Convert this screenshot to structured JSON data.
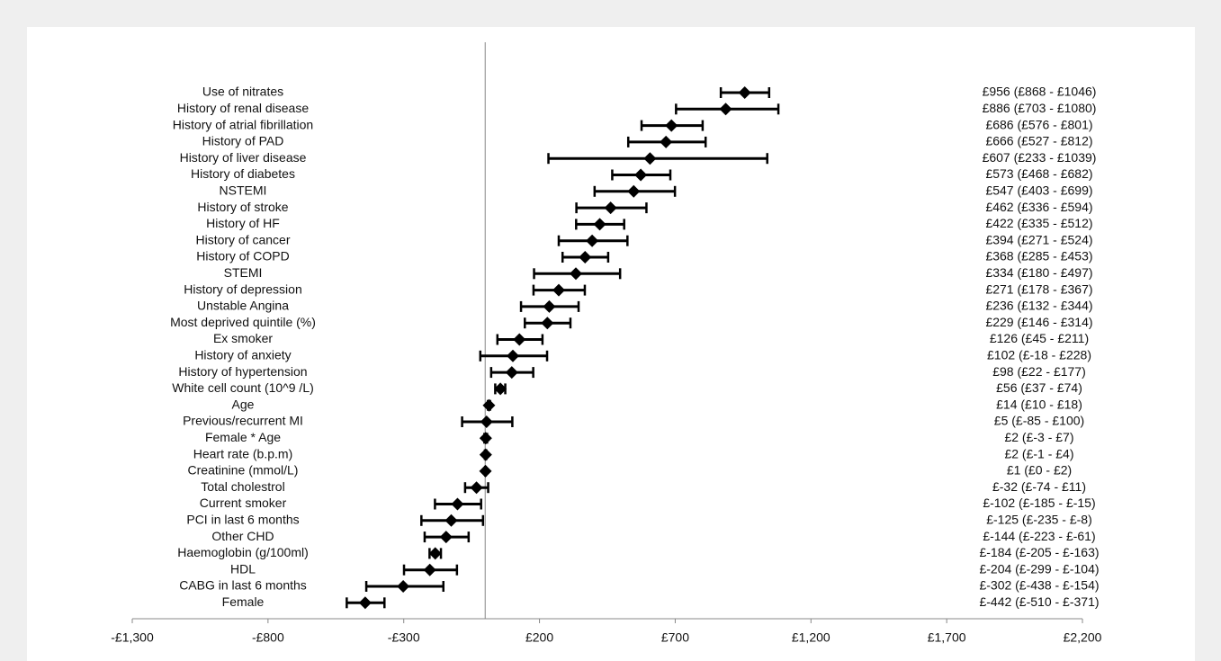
{
  "chart_data": {
    "type": "forest",
    "categories": [
      "Use of nitrates",
      "History of renal disease",
      "History of atrial fibrillation",
      "History of PAD",
      "History of liver disease",
      "History of diabetes",
      "NSTEMI",
      "History of stroke",
      "History of HF",
      "History of cancer",
      "History of COPD",
      "STEMI",
      "History of depression",
      "Unstable Angina",
      "Most deprived quintile (%)",
      "Ex smoker",
      "History of anxiety",
      "History of hypertension",
      "White cell count (10^9 /L)",
      "Age",
      "Previous/recurrent MI",
      "Female * Age",
      "Heart rate (b.p.m)",
      "Creatinine (mmol/L)",
      "Total cholestrol",
      "Current smoker",
      "PCI in last 6 months",
      "Other CHD",
      "Haemoglobin (g/100ml)",
      "HDL",
      "CABG in last 6 months",
      "Female"
    ],
    "values": [
      956,
      886,
      686,
      666,
      607,
      573,
      547,
      462,
      422,
      394,
      368,
      334,
      271,
      236,
      229,
      126,
      102,
      98,
      56,
      14,
      5,
      2,
      2,
      1,
      -32,
      -102,
      -125,
      -144,
      -184,
      -204,
      -302,
      -442
    ],
    "lower": [
      868,
      703,
      576,
      527,
      233,
      468,
      403,
      336,
      335,
      271,
      285,
      180,
      178,
      132,
      146,
      45,
      -18,
      22,
      37,
      10,
      -85,
      -3,
      -1,
      0,
      -74,
      -185,
      -235,
      -223,
      -205,
      -299,
      -438,
      -510
    ],
    "upper": [
      1046,
      1080,
      801,
      812,
      1039,
      682,
      699,
      594,
      512,
      524,
      453,
      497,
      367,
      344,
      314,
      211,
      228,
      177,
      74,
      18,
      100,
      7,
      4,
      2,
      11,
      -15,
      -8,
      -61,
      -163,
      -104,
      -154,
      -371
    ],
    "value_labels": [
      "£956 (£868 - £1046)",
      "£886 (£703 - £1080)",
      "£686 (£576 - £801)",
      "£666 (£527 - £812)",
      "£607 (£233 - £1039)",
      "£573 (£468 - £682)",
      "£547 (£403 - £699)",
      "£462 (£336 - £594)",
      "£422 (£335 - £512)",
      "£394 (£271 - £524)",
      "£368 (£285 - £453)",
      "£334 (£180 - £497)",
      "£271 (£178 - £367)",
      "£236 (£132 - £344)",
      "£229 (£146 - £314)",
      "£126 (£45 - £211)",
      "£102 (£-18 - £228)",
      "£98 (£22 - £177)",
      "£56 (£37 - £74)",
      "£14 (£10 - £18)",
      "£5 (£-85 - £100)",
      "£2 (£-3 - £7)",
      "£2 (£-1 - £4)",
      "£1 (£0 - £2)",
      "£-32 (£-74 - £11)",
      "£-102 (£-185 - £-15)",
      "£-125 (£-235 - £-8)",
      "£-144 (£-223 - £-61)",
      "£-184 (£-205 - £-163)",
      "£-204 (£-299 - £-104)",
      "£-302 (£-438 - £-154)",
      "£-442 (£-510 - £-371)"
    ],
    "color": "#000000",
    "xlim": [
      -1300,
      2200
    ],
    "xticks": [
      {
        "value": -1300,
        "label": "-£1,300"
      },
      {
        "value": -800,
        "label": "-£800"
      },
      {
        "value": -300,
        "label": "-£300"
      },
      {
        "value": 200,
        "label": "£200"
      },
      {
        "value": 700,
        "label": "£700"
      },
      {
        "value": 1200,
        "label": "£1,200"
      },
      {
        "value": 1700,
        "label": "£1,700"
      },
      {
        "value": 2200,
        "label": "£2,200"
      }
    ]
  }
}
